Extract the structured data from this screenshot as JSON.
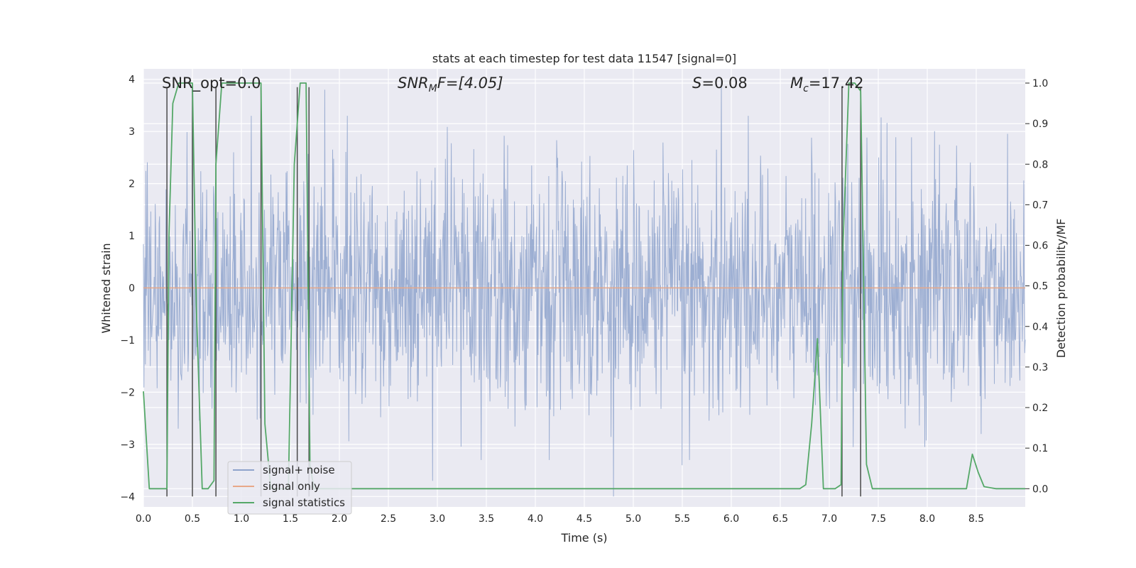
{
  "chart_data": {
    "type": "line",
    "title": "stats at each timestep for test data 11547 [signal=0]",
    "xlabel": "Time (s)",
    "ylabel_left": "Whitened strain",
    "ylabel_right": "Detection probability/MF",
    "xlim": [
      0.0,
      9.0
    ],
    "ylim_left": [
      -4.2,
      4.2
    ],
    "ylim_right": [
      -0.045,
      1.035
    ],
    "xticks": [
      0.0,
      0.5,
      1.0,
      1.5,
      2.0,
      2.5,
      3.0,
      3.5,
      4.0,
      4.5,
      5.0,
      5.5,
      6.0,
      6.5,
      7.0,
      7.5,
      8.0,
      8.5
    ],
    "xtick_labels": [
      "0.0",
      "0.5",
      "1.0",
      "1.5",
      "2.0",
      "2.5",
      "3.0",
      "3.5",
      "4.0",
      "4.5",
      "5.0",
      "5.5",
      "6.0",
      "6.5",
      "7.0",
      "7.5",
      "8.0",
      "8.5"
    ],
    "yticks_left": [
      -4,
      -3,
      -2,
      -1,
      0,
      1,
      2,
      3,
      4
    ],
    "ytick_labels_left": [
      "−4",
      "−3",
      "−2",
      "−1",
      "0",
      "1",
      "2",
      "3",
      "4"
    ],
    "yticks_right": [
      0.0,
      0.1,
      0.2,
      0.3,
      0.4,
      0.5,
      0.6,
      0.7,
      0.8,
      0.9,
      1.0
    ],
    "ytick_labels_right": [
      "0.0",
      "0.1",
      "0.2",
      "0.3",
      "0.4",
      "0.5",
      "0.6",
      "0.7",
      "0.8",
      "0.9",
      "1.0"
    ],
    "annotations": {
      "snr_opt": "SNR_opt=0.0",
      "snr_mf_label": "SNR",
      "snr_mf_sub": "M",
      "snr_mf_rest": "F=[4.05]",
      "s_label": "S",
      "s_value": "=0.08",
      "mc_label": "M",
      "mc_sub": "c",
      "mc_value": "=17.42"
    },
    "legend": {
      "position": "lower-left",
      "entries": [
        {
          "label": "signal+ noise",
          "color": "#8ea3cc"
        },
        {
          "label": "signal only",
          "color": "#e8a888"
        },
        {
          "label": "signal statistics",
          "color": "#55a868"
        }
      ]
    },
    "series": [
      {
        "name": "signal+ noise",
        "axis": "left",
        "color": "#8ea3cc",
        "kind": "noise",
        "x_range": [
          0.0,
          9.0
        ],
        "envelope_typical": 1.6,
        "notable_peaks": [
          {
            "x": 0.5,
            "y": 3.35
          },
          {
            "x": 1.85,
            "y": 3.8
          },
          {
            "x": 5.9,
            "y": 3.95
          },
          {
            "x": 4.8,
            "y": -4.0
          },
          {
            "x": 2.95,
            "y": -3.7
          },
          {
            "x": 5.5,
            "y": -3.4
          },
          {
            "x": 8.55,
            "y": -2.8
          }
        ]
      },
      {
        "name": "signal only",
        "axis": "left",
        "color": "#e8a888",
        "x": [
          0.0,
          9.0
        ],
        "y": [
          0.0,
          0.0
        ]
      },
      {
        "name": "signal statistics",
        "axis": "right",
        "color": "#55a868",
        "x": [
          0.0,
          0.06,
          0.12,
          0.18,
          0.24,
          0.26,
          0.3,
          0.36,
          0.42,
          0.48,
          0.5,
          0.54,
          0.6,
          0.66,
          0.72,
          0.74,
          0.8,
          0.86,
          0.9,
          0.96,
          1.02,
          1.08,
          1.14,
          1.2,
          1.24,
          1.3,
          1.36,
          1.42,
          1.48,
          1.54,
          1.6,
          1.66,
          1.7,
          1.74,
          1.8,
          2.0,
          3.0,
          4.0,
          5.0,
          6.0,
          6.7,
          6.76,
          6.82,
          6.88,
          6.94,
          7.0,
          7.06,
          7.12,
          7.14,
          7.2,
          7.26,
          7.32,
          7.38,
          7.44,
          7.5,
          8.0,
          8.3,
          8.4,
          8.46,
          8.52,
          8.58,
          8.7,
          9.0
        ],
        "y": [
          0.24,
          0.0,
          0.0,
          0.0,
          0.0,
          0.62,
          0.95,
          1.0,
          1.0,
          1.0,
          1.0,
          0.45,
          0.0,
          0.0,
          0.02,
          0.8,
          1.0,
          1.0,
          1.0,
          1.0,
          1.0,
          1.0,
          1.0,
          1.0,
          0.16,
          0.0,
          0.0,
          0.0,
          0.0,
          0.8,
          1.0,
          1.0,
          0.06,
          0.0,
          0.0,
          0.0,
          0.0,
          0.0,
          0.0,
          0.0,
          0.0,
          0.01,
          0.16,
          0.37,
          0.0,
          0.0,
          0.0,
          0.01,
          0.6,
          1.0,
          1.0,
          0.98,
          0.06,
          0.0,
          0.0,
          0.0,
          0.0,
          0.0,
          0.085,
          0.04,
          0.005,
          0.0,
          0.0
        ]
      }
    ],
    "vertical_markers": {
      "color": "#4a4a4a",
      "ymin": -4.0,
      "ymax": 3.85,
      "x": [
        0.24,
        0.5,
        0.74,
        1.2,
        1.57,
        1.69,
        7.13,
        7.32
      ]
    }
  }
}
